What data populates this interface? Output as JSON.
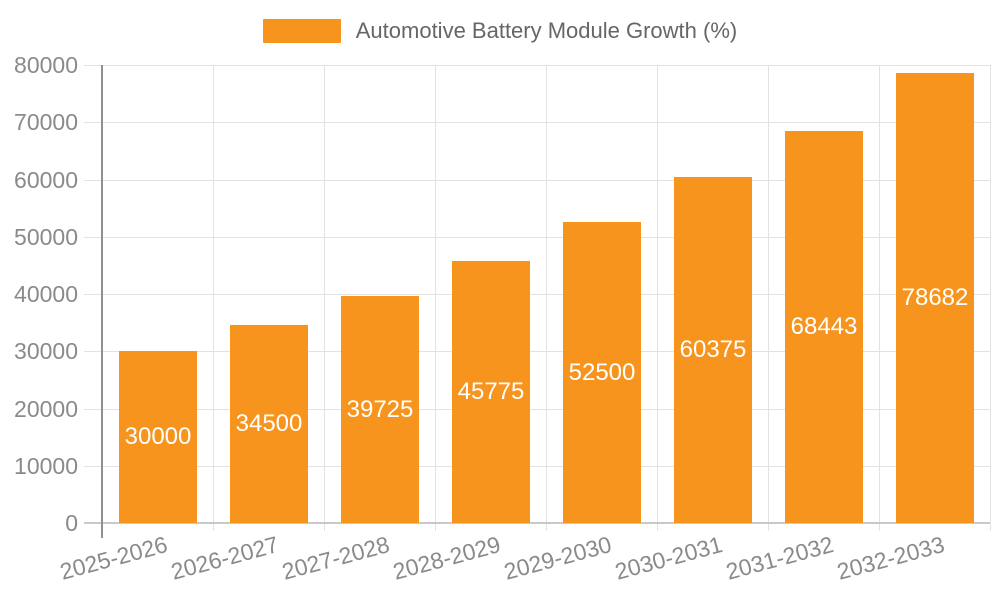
{
  "legend": {
    "label": "Automotive Battery Module Growth (%)"
  },
  "colors": {
    "bar": "#f7941e",
    "value_label": "#ffffff",
    "axis_label": "#8a8a8a",
    "legend_text": "#666666",
    "grid_line": "#e2e2e2",
    "axis_line_y": "#909090",
    "axis_line_x": "#c9c9c9",
    "background": "#ffffff"
  },
  "chart_data": {
    "type": "bar",
    "title": "",
    "xlabel": "",
    "ylabel": "",
    "series_name": "Automotive Battery Module Growth (%)",
    "categories": [
      "2025-2026",
      "2026-2027",
      "2027-2028",
      "2028-2029",
      "2029-2030",
      "2030-2031",
      "2031-2032",
      "2032-2033"
    ],
    "values": [
      30000,
      34500,
      39725,
      45775,
      52500,
      60375,
      68443,
      78682
    ],
    "value_labels": [
      "30000",
      "34500",
      "39725",
      "45775",
      "52500",
      "60375",
      "68443",
      "78682"
    ],
    "ylim": [
      0,
      80000
    ],
    "ytick_interval": 10000,
    "ytick_labels": [
      "0",
      "10000",
      "20000",
      "30000",
      "40000",
      "50000",
      "60000",
      "70000",
      "80000"
    ],
    "grid": true,
    "legend_position": "top-center",
    "value_label_position": "inside-center",
    "xtick_rotation_deg": -15
  }
}
